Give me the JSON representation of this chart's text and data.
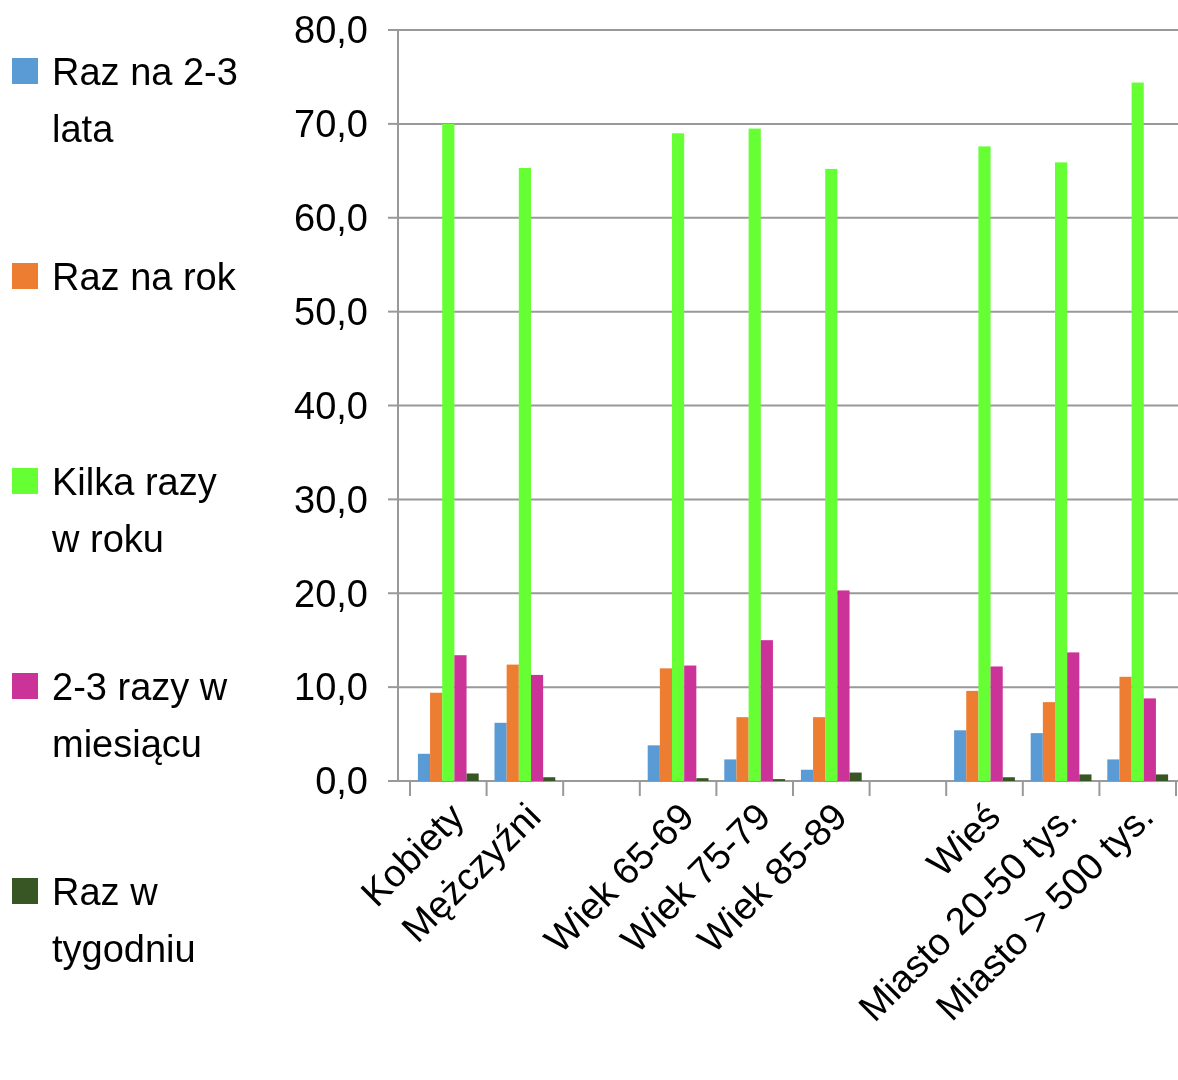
{
  "chart_data": {
    "type": "bar",
    "categories": [
      "Kobiety",
      "Mężczyźni",
      null,
      "Wiek 65-69",
      "Wiek 75-79",
      "Wiek 85-89",
      null,
      "Wieś",
      "Miasto 20-50 tys.",
      "Miasto > 500 tys."
    ],
    "series": [
      {
        "name": "Raz na 2-3 lata",
        "color": "#5b9bd5",
        "values": [
          2.9,
          6.2,
          null,
          3.8,
          2.3,
          1.2,
          null,
          5.4,
          5.1,
          2.3
        ]
      },
      {
        "name": "Raz na rok",
        "color": "#ed7d31",
        "values": [
          9.4,
          12.4,
          null,
          12.0,
          6.8,
          6.8,
          null,
          9.6,
          8.4,
          11.1
        ]
      },
      {
        "name": "Kilka razy w roku",
        "color": "#66ff33",
        "values": [
          70.0,
          65.3,
          null,
          69.0,
          69.5,
          65.2,
          null,
          67.6,
          65.9,
          74.4
        ]
      },
      {
        "name": "2-3 razy w miesiącu",
        "color": "#cc3399",
        "values": [
          13.4,
          11.3,
          null,
          12.3,
          15.0,
          20.3,
          null,
          12.2,
          13.7,
          8.8
        ]
      },
      {
        "name": "Raz w tygodniu",
        "color": "#375623",
        "values": [
          0.8,
          0.4,
          null,
          0.3,
          0.2,
          0.9,
          null,
          0.4,
          0.7,
          0.7
        ]
      }
    ],
    "ylim": [
      0,
      80
    ],
    "yticks": [
      {
        "value": 0,
        "label": "0,0"
      },
      {
        "value": 10,
        "label": "10,0"
      },
      {
        "value": 20,
        "label": "20,0"
      },
      {
        "value": 30,
        "label": "30,0"
      },
      {
        "value": 40,
        "label": "40,0"
      },
      {
        "value": 50,
        "label": "50,0"
      },
      {
        "value": 60,
        "label": "60,0"
      },
      {
        "value": 70,
        "label": "70,0"
      },
      {
        "value": 80,
        "label": "80,0"
      }
    ],
    "grid": "y",
    "legend": "left"
  }
}
